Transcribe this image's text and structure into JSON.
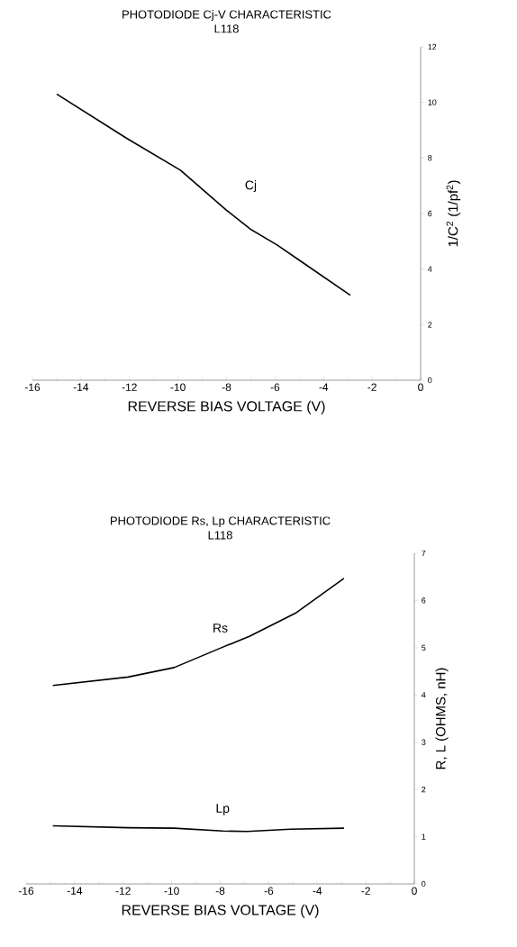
{
  "chart_data": [
    {
      "type": "line",
      "title": "PHOTODIODE Cj-V CHARACTERISTIC",
      "subtitle": "L118",
      "xlabel": "REVERSE BIAS VOLTAGE (V)",
      "ylabel": "1/C$^{2}$ (1/pf$^{2}$)",
      "xlim": [
        -16,
        0
      ],
      "xticks": [
        -16,
        -14,
        -12,
        -10,
        -8,
        -6,
        -4,
        -2,
        0
      ],
      "ylim": [
        0,
        12
      ],
      "yticks": [
        0,
        2,
        4,
        6,
        8,
        10,
        12
      ],
      "series": [
        {
          "name": "Cj",
          "color": "#000000",
          "x": [
            -15.0,
            -12.1,
            -9.9,
            -8.0,
            -7.0,
            -5.9,
            -4.8,
            -2.9
          ],
          "values": [
            10.3,
            8.7,
            7.56,
            6.12,
            5.43,
            4.86,
            4.2,
            3.06
          ]
        }
      ],
      "grid": false,
      "legend": false
    },
    {
      "type": "line",
      "title": "PHOTODIODE Rs, Lp CHARACTERISTIC",
      "subtitle": "L118",
      "xlabel": "REVERSE BIAS VOLTAGE (V)",
      "ylabel": "R, L (OHMS, nH)",
      "xlim": [
        -16,
        0
      ],
      "xticks": [
        -16,
        -14,
        -12,
        -10,
        -8,
        -6,
        -4,
        -2,
        0
      ],
      "ylim": [
        0,
        7
      ],
      "yticks": [
        0,
        1,
        2,
        3,
        4,
        5,
        6,
        7
      ],
      "series": [
        {
          "name": "Rs",
          "color": "#000000",
          "x": [
            -14.9,
            -11.8,
            -9.9,
            -8.0,
            -6.8,
            -4.9,
            -2.9
          ],
          "values": [
            4.2,
            4.38,
            4.58,
            4.99,
            5.24,
            5.73,
            6.47
          ]
        },
        {
          "name": "Lp",
          "color": "#000000",
          "x": [
            -14.9,
            -11.8,
            -9.9,
            -7.9,
            -6.9,
            -5.1,
            -2.9
          ],
          "values": [
            1.23,
            1.19,
            1.18,
            1.12,
            1.11,
            1.16,
            1.18
          ]
        }
      ],
      "grid": false,
      "legend": false
    }
  ]
}
